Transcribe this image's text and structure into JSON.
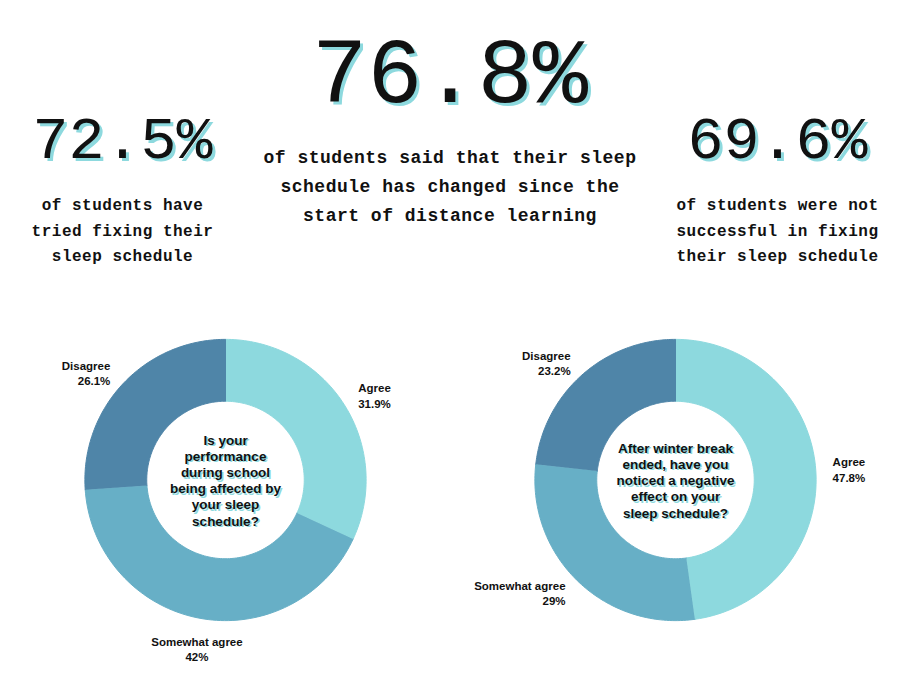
{
  "stats": [
    {
      "figure": "72.5%",
      "text": "of students have tried fixing their sleep schedule"
    },
    {
      "figure": "76.8%",
      "text": "of students said that their sleep schedule has changed since the start of distance learning"
    },
    {
      "figure": "69.6%",
      "text": "of students were not successful in fixing their sleep schedule"
    }
  ],
  "chart_data": [
    {
      "type": "donut",
      "title": "Is your performance during school being affected by your sleep schedule?",
      "categories": [
        "Agree",
        "Somewhat agree",
        "Disagree"
      ],
      "values": [
        31.9,
        42,
        26.1
      ],
      "value_labels": [
        "31.9%",
        "42%",
        "26.1%"
      ],
      "colors": [
        "#8dd9de",
        "#67afc6",
        "#4f85a8"
      ],
      "data_labels": true
    },
    {
      "type": "donut",
      "title": "After winter break ended, have you noticed a negative effect on your sleep schedule?",
      "categories": [
        "Agree",
        "Somewhat agree",
        "Disagree"
      ],
      "values": [
        47.8,
        29,
        23.2
      ],
      "value_labels": [
        "47.8%",
        "29%",
        "23.2%"
      ],
      "colors": [
        "#8dd9de",
        "#67afc6",
        "#4f85a8"
      ],
      "data_labels": true
    }
  ]
}
